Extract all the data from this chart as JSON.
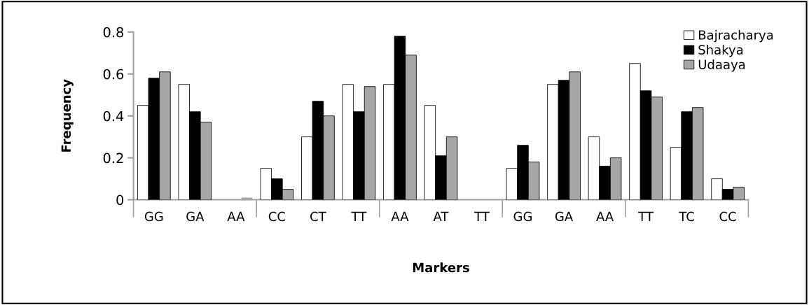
{
  "chart_data": {
    "type": "bar",
    "xlabel": "Markers",
    "ylabel": "Frequency",
    "categories": [
      "GG",
      "GA",
      "AA",
      "CC",
      "CT",
      "TT",
      "AA",
      "AT",
      "TT",
      "GG",
      "GA",
      "AA",
      "TT",
      "TC",
      "CC"
    ],
    "series": [
      {
        "name": "Bajracharya",
        "color": "#ffffff",
        "values": [
          0.45,
          0.55,
          0,
          0.15,
          0.3,
          0.55,
          0.55,
          0.45,
          0,
          0.15,
          0.55,
          0.3,
          0.65,
          0.25,
          0.1
        ]
      },
      {
        "name": "Shakya",
        "color": "#000000",
        "values": [
          0.58,
          0.42,
          0,
          0.1,
          0.47,
          0.42,
          0.78,
          0.21,
          0,
          0.26,
          0.57,
          0.16,
          0.52,
          0.42,
          0.05
        ]
      },
      {
        "name": "Udaaya",
        "color": "#a6a6a6",
        "values": [
          0.61,
          0.37,
          0.01,
          0.05,
          0.4,
          0.54,
          0.69,
          0.3,
          0,
          0.18,
          0.61,
          0.2,
          0.49,
          0.44,
          0.06
        ]
      }
    ],
    "ylim": [
      0,
      0.8
    ],
    "yticks": [
      0,
      0.2,
      0.4,
      0.6,
      0.8
    ],
    "grid": false,
    "legend": "top right"
  }
}
